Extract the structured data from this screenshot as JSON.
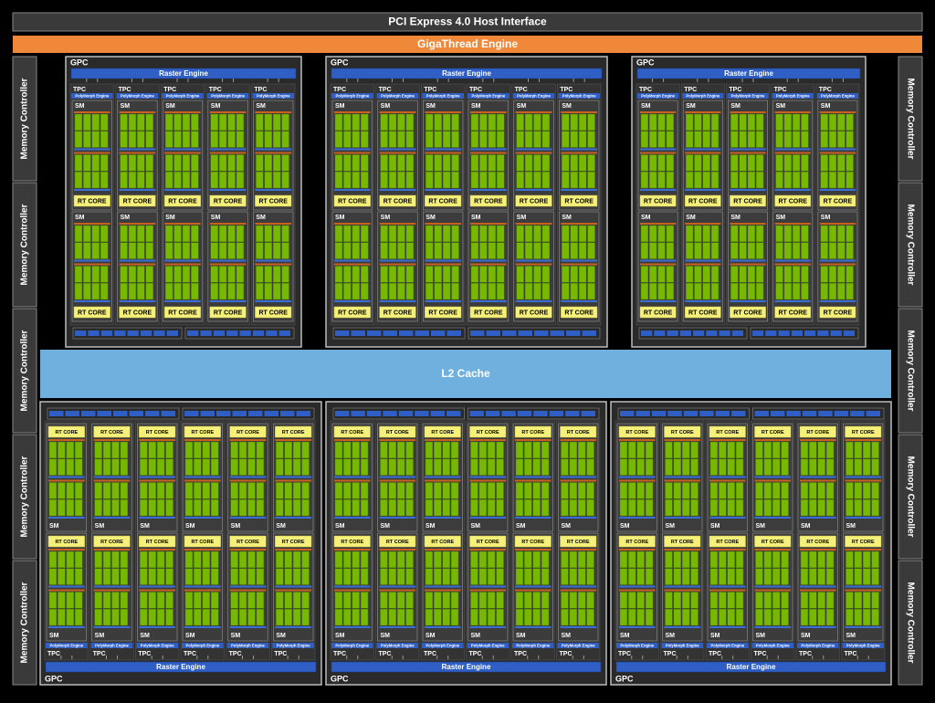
{
  "header": {
    "pcie": "PCI Express 4.0 Host Interface",
    "gigathread": "GigaThread Engine"
  },
  "l2_cache": "L2 Cache",
  "memory_controllers": {
    "left": [
      "Memory Controller",
      "Memory Controller",
      "Memory Controller",
      "Memory Controller",
      "Memory Controller"
    ],
    "right": [
      "Memory Controller",
      "Memory Controller",
      "Memory Controller",
      "Memory Controller",
      "Memory Controller"
    ]
  },
  "gpcs": [
    {
      "label": "GPC",
      "raster_engine": "Raster Engine",
      "tpcs": [
        {
          "label": "TPC",
          "polymorph": "PolyMorph Engine",
          "sms": [
            {
              "label": "SM",
              "rt_core": "RT CORE"
            },
            {
              "label": "SM",
              "rt_core": "RT CORE"
            }
          ]
        },
        {
          "label": "TPC",
          "polymorph": "PolyMorph Engine",
          "sms": [
            {
              "label": "SM",
              "rt_core": "RT CORE"
            },
            {
              "label": "SM",
              "rt_core": "RT CORE"
            }
          ]
        },
        {
          "label": "TPC",
          "polymorph": "PolyMorph Engine",
          "sms": [
            {
              "label": "SM",
              "rt_core": "RT CORE"
            },
            {
              "label": "SM",
              "rt_core": "RT CORE"
            }
          ]
        },
        {
          "label": "TPC",
          "polymorph": "PolyMorph Engine",
          "sms": [
            {
              "label": "SM",
              "rt_core": "RT CORE"
            },
            {
              "label": "SM",
              "rt_core": "RT CORE"
            }
          ]
        },
        {
          "label": "TPC",
          "polymorph": "PolyMorph Engine",
          "sms": [
            {
              "label": "SM",
              "rt_core": "RT CORE"
            },
            {
              "label": "SM",
              "rt_core": "RT CORE"
            }
          ]
        }
      ]
    },
    {
      "label": "GPC",
      "raster_engine": "Raster Engine",
      "tpcs": [
        {
          "label": "TPC",
          "polymorph": "PolyMorph Engine",
          "sms": [
            {
              "label": "SM",
              "rt_core": "RT CORE"
            },
            {
              "label": "SM",
              "rt_core": "RT CORE"
            }
          ]
        },
        {
          "label": "TPC",
          "polymorph": "PolyMorph Engine",
          "sms": [
            {
              "label": "SM",
              "rt_core": "RT CORE"
            },
            {
              "label": "SM",
              "rt_core": "RT CORE"
            }
          ]
        },
        {
          "label": "TPC",
          "polymorph": "PolyMorph Engine",
          "sms": [
            {
              "label": "SM",
              "rt_core": "RT CORE"
            },
            {
              "label": "SM",
              "rt_core": "RT CORE"
            }
          ]
        },
        {
          "label": "TPC",
          "polymorph": "PolyMorph Engine",
          "sms": [
            {
              "label": "SM",
              "rt_core": "RT CORE"
            },
            {
              "label": "SM",
              "rt_core": "RT CORE"
            }
          ]
        },
        {
          "label": "TPC",
          "polymorph": "PolyMorph Engine",
          "sms": [
            {
              "label": "SM",
              "rt_core": "RT CORE"
            },
            {
              "label": "SM",
              "rt_core": "RT CORE"
            }
          ]
        },
        {
          "label": "TPC",
          "polymorph": "PolyMorph Engine",
          "sms": [
            {
              "label": "SM",
              "rt_core": "RT CORE"
            },
            {
              "label": "SM",
              "rt_core": "RT CORE"
            }
          ]
        }
      ]
    },
    {
      "label": "GPC",
      "raster_engine": "Raster Engine",
      "tpcs": [
        {
          "label": "TPC",
          "polymorph": "PolyMorph Engine",
          "sms": [
            {
              "label": "SM",
              "rt_core": "RT CORE"
            },
            {
              "label": "SM",
              "rt_core": "RT CORE"
            }
          ]
        },
        {
          "label": "TPC",
          "polymorph": "PolyMorph Engine",
          "sms": [
            {
              "label": "SM",
              "rt_core": "RT CORE"
            },
            {
              "label": "SM",
              "rt_core": "RT CORE"
            }
          ]
        },
        {
          "label": "TPC",
          "polymorph": "PolyMorph Engine",
          "sms": [
            {
              "label": "SM",
              "rt_core": "RT CORE"
            },
            {
              "label": "SM",
              "rt_core": "RT CORE"
            }
          ]
        },
        {
          "label": "TPC",
          "polymorph": "PolyMorph Engine",
          "sms": [
            {
              "label": "SM",
              "rt_core": "RT CORE"
            },
            {
              "label": "SM",
              "rt_core": "RT CORE"
            }
          ]
        },
        {
          "label": "TPC",
          "polymorph": "PolyMorph Engine",
          "sms": [
            {
              "label": "SM",
              "rt_core": "RT CORE"
            },
            {
              "label": "SM",
              "rt_core": "RT CORE"
            }
          ]
        }
      ]
    },
    {
      "label": "GPC",
      "raster_engine": "Raster Engine",
      "tpcs": [
        {
          "label": "TPC",
          "polymorph": "PolyMorph Engine",
          "sms": [
            {
              "label": "SM",
              "rt_core": "RT CORE"
            },
            {
              "label": "SM",
              "rt_core": "RT CORE"
            }
          ]
        },
        {
          "label": "TPC",
          "polymorph": "PolyMorph Engine",
          "sms": [
            {
              "label": "SM",
              "rt_core": "RT CORE"
            },
            {
              "label": "SM",
              "rt_core": "RT CORE"
            }
          ]
        },
        {
          "label": "TPC",
          "polymorph": "PolyMorph Engine",
          "sms": [
            {
              "label": "SM",
              "rt_core": "RT CORE"
            },
            {
              "label": "SM",
              "rt_core": "RT CORE"
            }
          ]
        },
        {
          "label": "TPC",
          "polymorph": "PolyMorph Engine",
          "sms": [
            {
              "label": "SM",
              "rt_core": "RT CORE"
            },
            {
              "label": "SM",
              "rt_core": "RT CORE"
            }
          ]
        },
        {
          "label": "TPC",
          "polymorph": "PolyMorph Engine",
          "sms": [
            {
              "label": "SM",
              "rt_core": "RT CORE"
            },
            {
              "label": "SM",
              "rt_core": "RT CORE"
            }
          ]
        },
        {
          "label": "TPC",
          "polymorph": "PolyMorph Engine",
          "sms": [
            {
              "label": "SM",
              "rt_core": "RT CORE"
            },
            {
              "label": "SM",
              "rt_core": "RT CORE"
            }
          ]
        }
      ]
    },
    {
      "label": "GPC",
      "raster_engine": "Raster Engine",
      "tpcs": [
        {
          "label": "TPC",
          "polymorph": "PolyMorph Engine",
          "sms": [
            {
              "label": "SM",
              "rt_core": "RT CORE"
            },
            {
              "label": "SM",
              "rt_core": "RT CORE"
            }
          ]
        },
        {
          "label": "TPC",
          "polymorph": "PolyMorph Engine",
          "sms": [
            {
              "label": "SM",
              "rt_core": "RT CORE"
            },
            {
              "label": "SM",
              "rt_core": "RT CORE"
            }
          ]
        },
        {
          "label": "TPC",
          "polymorph": "PolyMorph Engine",
          "sms": [
            {
              "label": "SM",
              "rt_core": "RT CORE"
            },
            {
              "label": "SM",
              "rt_core": "RT CORE"
            }
          ]
        },
        {
          "label": "TPC",
          "polymorph": "PolyMorph Engine",
          "sms": [
            {
              "label": "SM",
              "rt_core": "RT CORE"
            },
            {
              "label": "SM",
              "rt_core": "RT CORE"
            }
          ]
        },
        {
          "label": "TPC",
          "polymorph": "PolyMorph Engine",
          "sms": [
            {
              "label": "SM",
              "rt_core": "RT CORE"
            },
            {
              "label": "SM",
              "rt_core": "RT CORE"
            }
          ]
        },
        {
          "label": "TPC",
          "polymorph": "PolyMorph Engine",
          "sms": [
            {
              "label": "SM",
              "rt_core": "RT CORE"
            },
            {
              "label": "SM",
              "rt_core": "RT CORE"
            }
          ]
        }
      ]
    },
    {
      "label": "GPC",
      "raster_engine": "Raster Engine",
      "tpcs": [
        {
          "label": "TPC",
          "polymorph": "PolyMorph Engine",
          "sms": [
            {
              "label": "SM",
              "rt_core": "RT CORE"
            },
            {
              "label": "SM",
              "rt_core": "RT CORE"
            }
          ]
        },
        {
          "label": "TPC",
          "polymorph": "PolyMorph Engine",
          "sms": [
            {
              "label": "SM",
              "rt_core": "RT CORE"
            },
            {
              "label": "SM",
              "rt_core": "RT CORE"
            }
          ]
        },
        {
          "label": "TPC",
          "polymorph": "PolyMorph Engine",
          "sms": [
            {
              "label": "SM",
              "rt_core": "RT CORE"
            },
            {
              "label": "SM",
              "rt_core": "RT CORE"
            }
          ]
        },
        {
          "label": "TPC",
          "polymorph": "PolyMorph Engine",
          "sms": [
            {
              "label": "SM",
              "rt_core": "RT CORE"
            },
            {
              "label": "SM",
              "rt_core": "RT CORE"
            }
          ]
        },
        {
          "label": "TPC",
          "polymorph": "PolyMorph Engine",
          "sms": [
            {
              "label": "SM",
              "rt_core": "RT CORE"
            },
            {
              "label": "SM",
              "rt_core": "RT CORE"
            }
          ]
        },
        {
          "label": "TPC",
          "polymorph": "PolyMorph Engine",
          "sms": [
            {
              "label": "SM",
              "rt_core": "RT CORE"
            },
            {
              "label": "SM",
              "rt_core": "RT CORE"
            }
          ]
        }
      ]
    }
  ]
}
